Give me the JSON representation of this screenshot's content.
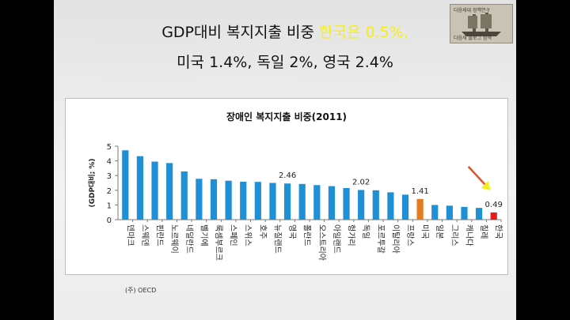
{
  "headline": {
    "line1_prefix": "GDP대비  복지지출 비중 ",
    "line1_highlight": "한국은 0.5%,",
    "line2": "미국 1.4%, 독일 2%, 영국 2.4%"
  },
  "logo": {
    "top_text": "다음세대 정책연구",
    "bottom_text": "다음세 블로그 정책"
  },
  "source": "(주) OECD",
  "colors": {
    "bar": "#1f8fd6",
    "usa": "#e57a1f",
    "korea": "#e41b1b",
    "highlight": "#f5ee1c",
    "arrow": "#e0532a"
  },
  "chart_data": {
    "type": "bar",
    "title": "장애인 복지지출 비중(2011)",
    "ylabel": "(GDP대비; %)",
    "ylim": [
      0,
      5
    ],
    "yticks": [
      0,
      1,
      2,
      3,
      4,
      5
    ],
    "grid": false,
    "categories": [
      "덴마크",
      "스웨덴",
      "핀란드",
      "노르웨이",
      "네덜란드",
      "벨기에",
      "룩셈부르크",
      "스페인",
      "스위스",
      "호주",
      "뉴질랜드",
      "영국",
      "폴란드",
      "오스트리아",
      "아일랜드",
      "헝가리",
      "독일",
      "포르투갈",
      "이탈리아",
      "프랑스",
      "미국",
      "일본",
      "그리스",
      "캐나다",
      "칠레",
      "한국"
    ],
    "values": [
      4.72,
      4.32,
      3.95,
      3.85,
      3.28,
      2.78,
      2.75,
      2.65,
      2.58,
      2.57,
      2.5,
      2.46,
      2.43,
      2.35,
      2.28,
      2.15,
      2.02,
      2.0,
      1.86,
      1.7,
      1.41,
      1.0,
      0.95,
      0.87,
      0.8,
      0.49
    ],
    "highlights": {
      "미국": "usa",
      "한국": "korea"
    },
    "data_labels": {
      "영국": "2.46",
      "독일": "2.02",
      "미국": "1.41",
      "한국": "0.49"
    }
  }
}
